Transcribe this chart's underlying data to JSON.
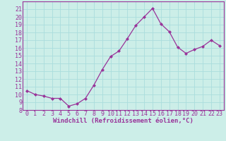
{
  "x": [
    0,
    1,
    2,
    3,
    4,
    5,
    6,
    7,
    8,
    9,
    10,
    11,
    12,
    13,
    14,
    15,
    16,
    17,
    18,
    19,
    20,
    21,
    22,
    23
  ],
  "y": [
    10.5,
    10.0,
    9.8,
    9.5,
    9.5,
    8.5,
    8.8,
    9.5,
    11.2,
    13.2,
    14.9,
    15.6,
    17.2,
    18.9,
    20.0,
    21.1,
    19.1,
    18.1,
    16.1,
    15.3,
    15.8,
    16.2,
    17.0,
    16.3
  ],
  "line_color": "#993399",
  "marker": "D",
  "marker_size": 2,
  "bg_color": "#cceee8",
  "grid_color": "#aadddd",
  "xlabel": "Windchill (Refroidissement éolien,°C)",
  "ylim": [
    8,
    22
  ],
  "xlim": [
    -0.5,
    23.5
  ],
  "yticks": [
    8,
    9,
    10,
    11,
    12,
    13,
    14,
    15,
    16,
    17,
    18,
    19,
    20,
    21
  ],
  "xticks": [
    0,
    1,
    2,
    3,
    4,
    5,
    6,
    7,
    8,
    9,
    10,
    11,
    12,
    13,
    14,
    15,
    16,
    17,
    18,
    19,
    20,
    21,
    22,
    23
  ],
  "tick_color": "#993399",
  "label_color": "#993399",
  "font_size": 6,
  "xlabel_fontsize": 6.5,
  "spine_color": "#993399"
}
